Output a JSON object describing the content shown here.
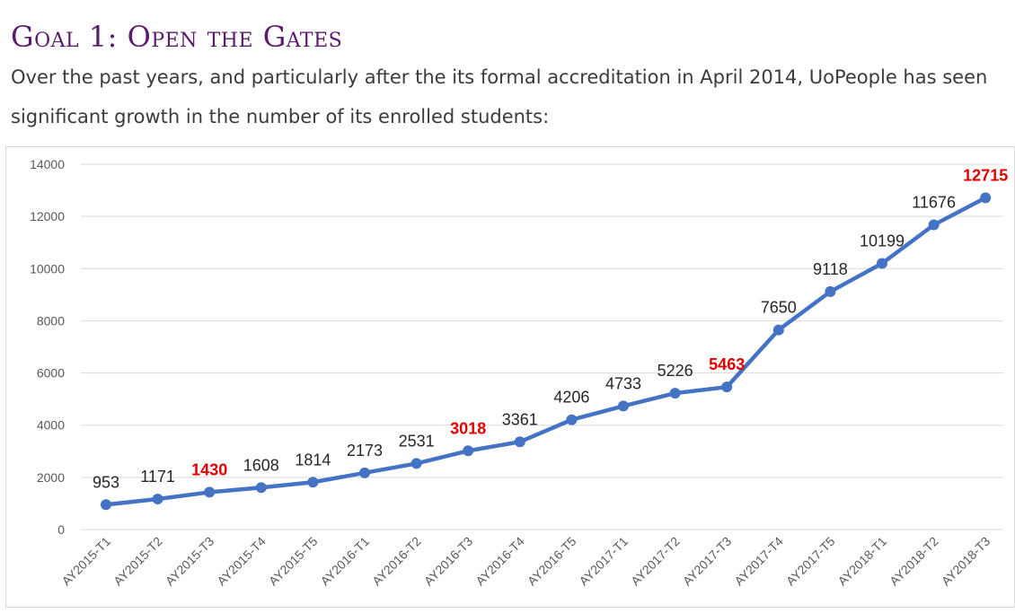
{
  "header": {
    "title": "Goal 1: Open the Gates",
    "intro": "Over the past years, and particularly after the its formal accreditation in April 2014, UoPeople has seen significant growth in the number of its enrolled students:"
  },
  "chart_data": {
    "type": "line",
    "categories": [
      "AY2015-T1",
      "AY2015-T2",
      "AY2015-T3",
      "AY2015-T4",
      "AY2015-T5",
      "AY2016-T1",
      "AY2016-T2",
      "AY2016-T3",
      "AY2016-T4",
      "AY2016-T5",
      "AY2017-T1",
      "AY2017-T2",
      "AY2017-T3",
      "AY2017-T4",
      "AY2017-T5",
      "AY2018-T1",
      "AY2018-T2",
      "AY2018-T3"
    ],
    "series": [
      {
        "values": [
          953,
          1171,
          1430,
          1608,
          1814,
          2173,
          2531,
          3018,
          3361,
          4206,
          4733,
          5226,
          5463,
          7650,
          9118,
          10199,
          11676,
          12715
        ]
      }
    ],
    "highlighted_labels": [
      "AY2015-T3",
      "AY2016-T3",
      "AY2017-T3",
      "AY2018-T3"
    ],
    "ylim": [
      0,
      14000
    ],
    "yticks": [
      0,
      2000,
      4000,
      6000,
      8000,
      10000,
      12000,
      14000
    ],
    "grid": true,
    "legend": "none",
    "xlabel": "",
    "ylabel": "",
    "colors": {
      "line": "#4472c4",
      "highlight_label": "#e00000",
      "label": "#262626",
      "grid": "#d9d9d9"
    }
  }
}
